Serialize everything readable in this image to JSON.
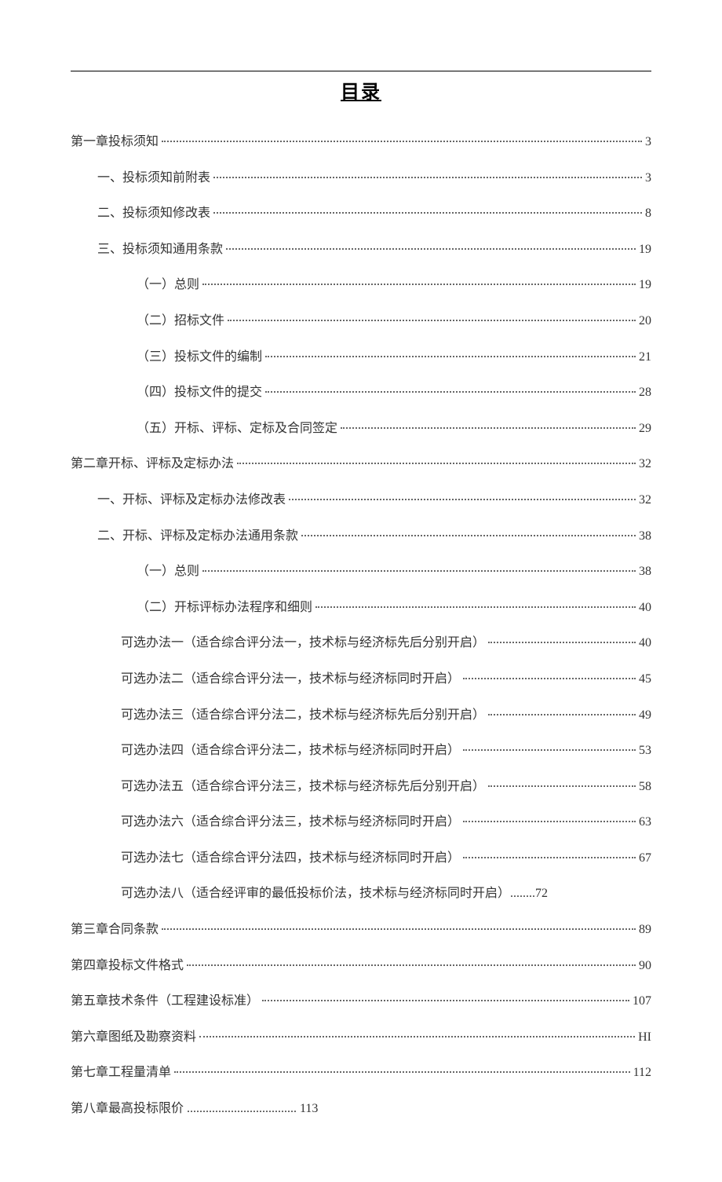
{
  "title": "目录",
  "text_color": "#333333",
  "leader_color": "#666666",
  "font_family": "SimSun",
  "font_size": 16,
  "title_font_size": 24,
  "entries": [
    {
      "label": "第一章投标须知",
      "page": "3",
      "indent": 0,
      "leader": true
    },
    {
      "label": "一、投标须知前附表",
      "page": "3",
      "indent": 1,
      "leader": true
    },
    {
      "label": "二、投标须知修改表",
      "page": "8",
      "indent": 1,
      "leader": true
    },
    {
      "label": "三、投标须知通用条款",
      "page": "19",
      "indent": 1,
      "leader": true
    },
    {
      "label": "（一）总则",
      "page": "19",
      "indent": 2,
      "leader": true
    },
    {
      "label": "（二）招标文件",
      "page": "20",
      "indent": 2,
      "leader": true
    },
    {
      "label": "（三）投标文件的编制",
      "page": "21",
      "indent": 2,
      "leader": true
    },
    {
      "label": "（四）投标文件的提交",
      "page": "28",
      "indent": 2,
      "leader": true
    },
    {
      "label": "（五）开标、评标、定标及合同签定",
      "page": "29",
      "indent": 2,
      "leader": true
    },
    {
      "label": "第二章开标、评标及定标办法",
      "page": "32",
      "indent": 0,
      "leader": true
    },
    {
      "label": "一、开标、评标及定标办法修改表",
      "page": "32",
      "indent": 1,
      "leader": true
    },
    {
      "label": "二、开标、评标及定标办法通用条款",
      "page": "38",
      "indent": 1,
      "leader": true
    },
    {
      "label": "（一）总则",
      "page": "38",
      "indent": 2,
      "leader": true
    },
    {
      "label": "（二）开标评标办法程序和细则",
      "page": "40",
      "indent": 2,
      "leader": true
    },
    {
      "label": "可选办法一（适合综合评分法一，技术标与经济标先后分别开启）",
      "page": "40",
      "indent": 3,
      "leader": true
    },
    {
      "label": "可选办法二（适合综合评分法一，技术标与经济标同时开启）",
      "page": "45",
      "indent": 3,
      "leader": true
    },
    {
      "label": "可选办法三（适合综合评分法二，技术标与经济标先后分别开启）",
      "page": "49",
      "indent": 3,
      "leader": true
    },
    {
      "label": "可选办法四（适合综合评分法二，技术标与经济标同时开启）",
      "page": "53",
      "indent": 3,
      "leader": true
    },
    {
      "label": "可选办法五（适合综合评分法三，技术标与经济标先后分别开启）",
      "page": "58",
      "indent": 3,
      "leader": true
    },
    {
      "label": "可选办法六（适合综合评分法三，技术标与经济标同时开启）",
      "page": "63",
      "indent": 3,
      "leader": true
    },
    {
      "label": "可选办法七（适合综合评分法四，技术标与经济标同时开启）",
      "page": "67",
      "indent": 3,
      "leader": true
    },
    {
      "label": "可选办法八（适合经评审的最低投标价法，技术标与经济标同时开启）........72",
      "page": "",
      "indent": 3,
      "leader": false
    },
    {
      "label": "第三章合同条款",
      "page": "89",
      "indent": 0,
      "leader": true
    },
    {
      "label": "第四章投标文件格式",
      "page": "90",
      "indent": 0,
      "leader": true
    },
    {
      "label": "第五章技术条件（工程建设标准）",
      "page": "107",
      "indent": 0,
      "leader": true
    },
    {
      "label": "第六章图纸及勘察资料",
      "page": "HI",
      "indent": 0,
      "leader": true
    },
    {
      "label": "第七章工程量清单",
      "page": "112",
      "indent": 0,
      "leader": true
    },
    {
      "label": "第八章最高投标限价 ................................... 113",
      "page": "",
      "indent": 0,
      "leader": false
    }
  ]
}
